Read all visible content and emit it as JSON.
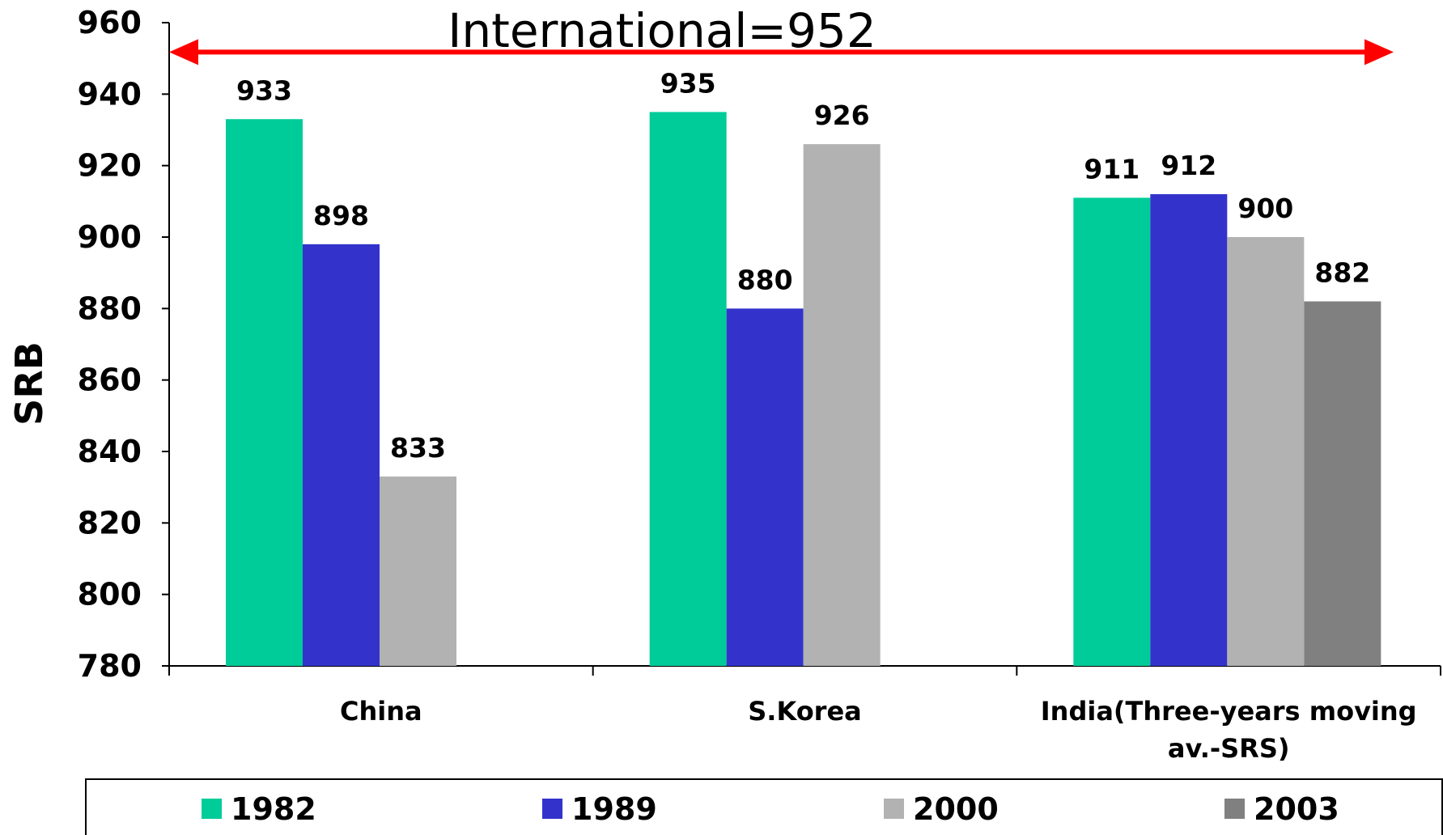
{
  "chart_data": {
    "type": "bar",
    "ylabel": "SRB",
    "ylim": [
      780,
      960
    ],
    "yticks": [
      780,
      800,
      820,
      840,
      860,
      880,
      900,
      920,
      940,
      960
    ],
    "grid": false,
    "legend_position": "bottom",
    "categories": [
      "China",
      "S.Korea",
      "India(Three-years moving av.-SRS)"
    ],
    "category_lines": [
      [
        "China"
      ],
      [
        "S.Korea"
      ],
      [
        "India(Three-years moving",
        "av.-SRS)"
      ]
    ],
    "series": [
      {
        "name": "1982",
        "color": "#00CC99",
        "values": [
          933,
          935,
          911
        ]
      },
      {
        "name": "1989",
        "color": "#3333CC",
        "values": [
          898,
          880,
          912
        ]
      },
      {
        "name": "2000",
        "color": "#B2B2B2",
        "values": [
          833,
          926,
          900
        ]
      },
      {
        "name": "2003",
        "color": "#808080",
        "values": [
          null,
          null,
          882
        ]
      }
    ],
    "reference_line": {
      "label": "International=952",
      "value": 952,
      "color": "#FF0000"
    }
  }
}
